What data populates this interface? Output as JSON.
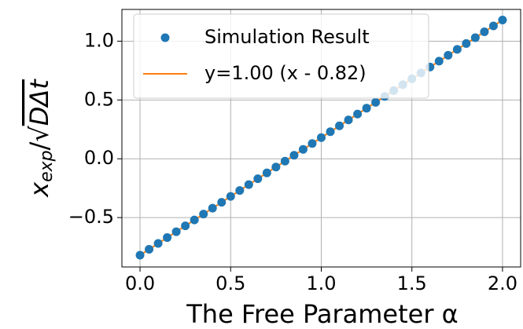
{
  "chart_data": {
    "type": "scatter",
    "xlabel": "The Free Parameter α",
    "ylabel": {
      "main": "x",
      "sub": "exp",
      "rest": "/√",
      "root": "DΔt"
    },
    "xlim": [
      -0.1,
      2.1
    ],
    "ylim": [
      -0.92,
      1.27
    ],
    "xticks": [
      {
        "value": 0,
        "label": "0.0"
      },
      0.5,
      {
        "value": 1,
        "label": "1.0"
      },
      1.5,
      {
        "value": 2,
        "label": "2.0"
      }
    ],
    "yticks": [
      {
        "value": -0.5,
        "label": "−0.5"
      },
      {
        "value": 0,
        "label": "0.0"
      },
      0.5,
      {
        "value": 1,
        "label": "1.0"
      }
    ],
    "grid": true,
    "legend": "upper left",
    "series": [
      {
        "name": "Simulation Result",
        "color": "#1f77b4",
        "kind": "points",
        "x": [
          0,
          0.05,
          0.1,
          0.15,
          0.2,
          0.25,
          0.3,
          0.35,
          0.4,
          0.45,
          0.5,
          0.55,
          0.6,
          0.65,
          0.7,
          0.75,
          0.8,
          0.85,
          0.9,
          0.95,
          1,
          1.05,
          1.1,
          1.15,
          1.2,
          1.25,
          1.3,
          1.35,
          1.4,
          1.45,
          1.5,
          1.55,
          1.6,
          1.65,
          1.7,
          1.75,
          1.8,
          1.85,
          1.9,
          1.95,
          2
        ],
        "values": [
          -0.82,
          -0.77,
          -0.72,
          -0.67,
          -0.62,
          -0.57,
          -0.52,
          -0.47,
          -0.42,
          -0.37,
          -0.32,
          -0.27,
          -0.22,
          -0.17,
          -0.12,
          -0.07,
          -0.02,
          0.03,
          0.08,
          0.13,
          0.18,
          0.23,
          0.28,
          0.33,
          0.38,
          0.43,
          0.48,
          0.53,
          0.58,
          0.63,
          0.68,
          0.73,
          0.78,
          0.83,
          0.88,
          0.93,
          0.98,
          1.03,
          1.08,
          1.13,
          1.18
        ]
      },
      {
        "name": "y=1.00 (x - 0.82)",
        "color": "#ff7f0e",
        "kind": "line",
        "x": [
          0,
          2
        ],
        "values": [
          -0.82,
          1.18
        ]
      }
    ]
  }
}
